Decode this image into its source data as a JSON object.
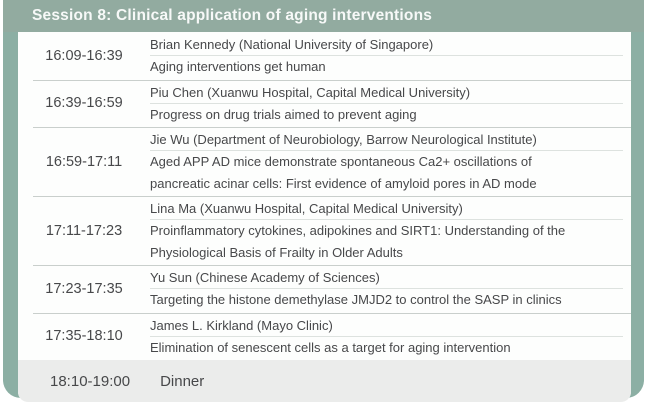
{
  "header": {
    "title": "Session 8: Clinical application of aging interventions"
  },
  "schedule": {
    "rows": [
      {
        "time": "16:09-16:39",
        "speaker": "Brian Kennedy (National University of Singapore)",
        "title": "Aging interventions get human"
      },
      {
        "time": "16:39-16:59",
        "speaker": "Piu Chen (Xuanwu Hospital, Capital Medical University)",
        "title": "Progress on drug trials aimed to prevent aging"
      },
      {
        "time": "16:59-17:11",
        "speaker": "Jie Wu (Department of Neurobiology, Barrow Neurological Institute)",
        "title": "Aged APP AD mice demonstrate spontaneous Ca2+ oscillations of\npancreatic acinar cells: First evidence of amyloid pores in AD mode"
      },
      {
        "time": "17:11-17:23",
        "speaker": "Lina Ma (Xuanwu Hospital, Capital Medical University)",
        "title": "Proinflammatory cytokines, adipokines and SIRT1: Understanding of the\nPhysiological Basis of Frailty in Older Adults"
      },
      {
        "time": "17:23-17:35",
        "speaker": "Yu Sun (Chinese Academy of Sciences)",
        "title": "Targeting the histone demethylase JMJD2 to control the SASP in clinics"
      },
      {
        "time": "17:35-18:10",
        "speaker": "James L. Kirkland (Mayo Clinic)",
        "title": "Elimination of senescent cells as a target for aging intervention"
      }
    ],
    "footer": {
      "time": "18:10-19:00",
      "label": "Dinner"
    }
  },
  "colors": {
    "green-header": "#92aba0",
    "green-border": "#8cafa4",
    "dinner-bg": "#ebeceb",
    "panel-bg": "#fdfefd",
    "text": "#47484a",
    "header-text": "#f7f9f8",
    "line-row": "#c9cfcc",
    "line-inner": "#dde2df"
  }
}
